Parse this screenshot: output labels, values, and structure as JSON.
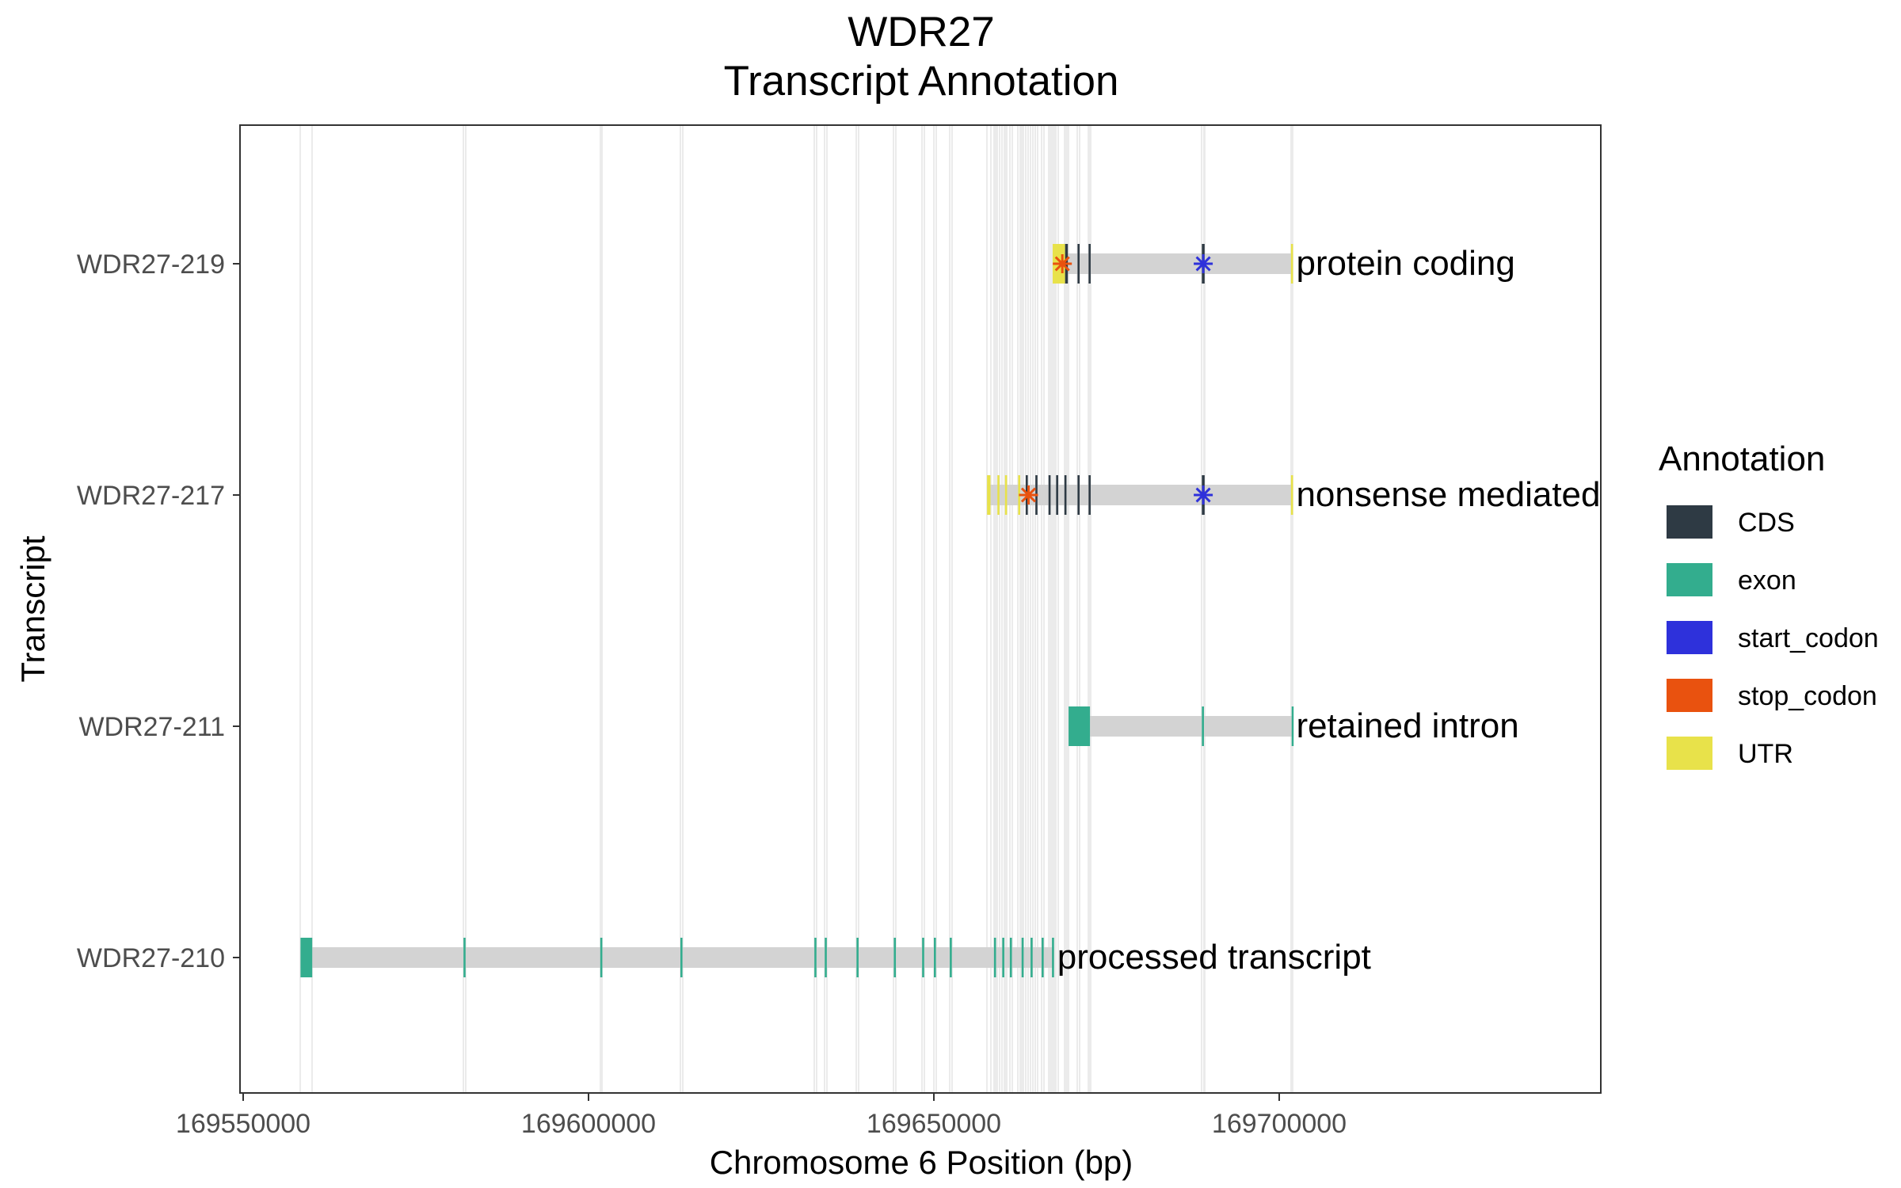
{
  "chart_data": {
    "type": "gene-track",
    "title": "WDR27",
    "subtitle": "Transcript Annotation",
    "xlabel": "Chromosome 6 Position (bp)",
    "ylabel": "Transcript",
    "xlim": [
      169550000,
      169750000
    ],
    "xticks": [
      169550000,
      169600000,
      169650000,
      169700000
    ],
    "xtick_labels": [
      "169550000",
      "169600000",
      "169650000",
      "169700000"
    ],
    "grid": true,
    "legend": {
      "title": "Annotation",
      "position": "right",
      "items": [
        {
          "label": "CDS",
          "color": "#2E3A44"
        },
        {
          "label": "exon",
          "color": "#33AD8E"
        },
        {
          "label": "start_codon",
          "color": "#2E31DB"
        },
        {
          "label": "stop_codon",
          "color": "#E9520F"
        },
        {
          "label": "UTR",
          "color": "#E8E24A"
        }
      ]
    },
    "colors": {
      "intron": "#D3D3D3"
    },
    "transcripts": [
      {
        "id": "WDR27-219",
        "biotype": "protein coding",
        "start": 169667200,
        "end": 169702000,
        "features": [
          {
            "type": "UTR",
            "start": 169667200,
            "end": 169669000
          },
          {
            "type": "CDS",
            "start": 169669000,
            "end": 169669400
          },
          {
            "type": "CDS",
            "start": 169670800,
            "end": 169671100
          },
          {
            "type": "CDS",
            "start": 169672400,
            "end": 169672700
          },
          {
            "type": "CDS",
            "start": 169688800,
            "end": 169689200
          },
          {
            "type": "UTR",
            "start": 169701700,
            "end": 169702000
          },
          {
            "type": "stop_codon",
            "start": 169668600,
            "end": 169668600
          },
          {
            "type": "start_codon",
            "start": 169689000,
            "end": 169689000
          }
        ]
      },
      {
        "id": "WDR27-217",
        "biotype": "nonsense mediated decay",
        "start": 169657700,
        "end": 169702000,
        "features": [
          {
            "type": "UTR",
            "start": 169657700,
            "end": 169658200
          },
          {
            "type": "UTR",
            "start": 169659200,
            "end": 169659500
          },
          {
            "type": "UTR",
            "start": 169660300,
            "end": 169660600
          },
          {
            "type": "UTR",
            "start": 169662200,
            "end": 169662500
          },
          {
            "type": "CDS",
            "start": 169663300,
            "end": 169663600
          },
          {
            "type": "CDS",
            "start": 169664700,
            "end": 169665000
          },
          {
            "type": "CDS",
            "start": 169666600,
            "end": 169666900
          },
          {
            "type": "CDS",
            "start": 169667700,
            "end": 169668000
          },
          {
            "type": "CDS",
            "start": 169668900,
            "end": 169669200
          },
          {
            "type": "CDS",
            "start": 169670800,
            "end": 169671100
          },
          {
            "type": "CDS",
            "start": 169672400,
            "end": 169672700
          },
          {
            "type": "CDS",
            "start": 169688800,
            "end": 169689200
          },
          {
            "type": "UTR",
            "start": 169701700,
            "end": 169702000
          },
          {
            "type": "stop_codon",
            "start": 169663700,
            "end": 169663700
          },
          {
            "type": "start_codon",
            "start": 169689000,
            "end": 169689000
          }
        ]
      },
      {
        "id": "WDR27-211",
        "biotype": "retained intron",
        "start": 169669500,
        "end": 169702000,
        "features": [
          {
            "type": "exon",
            "start": 169669500,
            "end": 169672600
          },
          {
            "type": "exon",
            "start": 169688800,
            "end": 169689100
          },
          {
            "type": "exon",
            "start": 169701800,
            "end": 169702000
          }
        ]
      },
      {
        "id": "WDR27-210",
        "biotype": "processed transcript",
        "start": 169558300,
        "end": 169667400,
        "features": [
          {
            "type": "exon",
            "start": 169558300,
            "end": 169560000
          },
          {
            "type": "exon",
            "start": 169581900,
            "end": 169582200
          },
          {
            "type": "exon",
            "start": 169601700,
            "end": 169602000
          },
          {
            "type": "exon",
            "start": 169613300,
            "end": 169613600
          },
          {
            "type": "exon",
            "start": 169632700,
            "end": 169633000
          },
          {
            "type": "exon",
            "start": 169634200,
            "end": 169634500
          },
          {
            "type": "exon",
            "start": 169638800,
            "end": 169639100
          },
          {
            "type": "exon",
            "start": 169644200,
            "end": 169644500
          },
          {
            "type": "exon",
            "start": 169648300,
            "end": 169648600
          },
          {
            "type": "exon",
            "start": 169650000,
            "end": 169650300
          },
          {
            "type": "exon",
            "start": 169652300,
            "end": 169652600
          },
          {
            "type": "exon",
            "start": 169658700,
            "end": 169659000
          },
          {
            "type": "exon",
            "start": 169659900,
            "end": 169660200
          },
          {
            "type": "exon",
            "start": 169661000,
            "end": 169661300
          },
          {
            "type": "exon",
            "start": 169662700,
            "end": 169663000
          },
          {
            "type": "exon",
            "start": 169664000,
            "end": 169664300
          },
          {
            "type": "exon",
            "start": 169665600,
            "end": 169665900
          },
          {
            "type": "exon",
            "start": 169667100,
            "end": 169667400
          }
        ]
      }
    ]
  }
}
